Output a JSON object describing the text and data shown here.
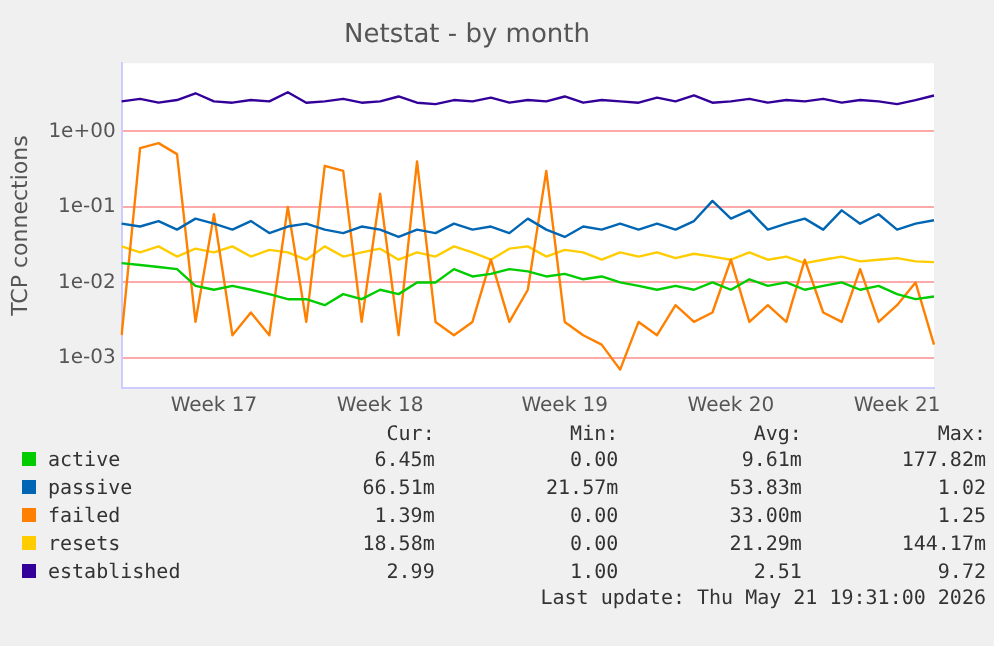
{
  "chart_data": {
    "type": "line",
    "title": "Netstat - by month",
    "ylabel": "TCP connections",
    "categories": [
      null,
      null,
      null,
      null,
      null,
      "Week 17",
      null,
      null,
      null,
      null,
      null,
      null,
      null,
      null,
      "Week 18",
      null,
      null,
      null,
      null,
      null,
      null,
      null,
      null,
      null,
      "Week 19",
      null,
      null,
      null,
      null,
      null,
      null,
      null,
      null,
      "Week 20",
      null,
      null,
      null,
      null,
      null,
      null,
      null,
      null,
      "Week 21",
      null,
      null
    ],
    "series": [
      {
        "name": "active",
        "color": "#00cc00",
        "values": [
          0.018,
          0.017,
          0.016,
          0.015,
          0.009,
          0.008,
          0.009,
          0.008,
          0.007,
          0.006,
          0.006,
          0.005,
          0.007,
          0.006,
          0.008,
          0.007,
          0.01,
          0.01,
          0.015,
          0.012,
          0.013,
          0.015,
          0.014,
          0.012,
          0.013,
          0.011,
          0.012,
          0.01,
          0.009,
          0.008,
          0.009,
          0.008,
          0.01,
          0.008,
          0.011,
          0.009,
          0.01,
          0.008,
          0.009,
          0.01,
          0.008,
          0.009,
          0.007,
          0.006,
          0.0065
        ]
      },
      {
        "name": "passive",
        "color": "#0066b3",
        "values": [
          0.06,
          0.055,
          0.065,
          0.05,
          0.07,
          0.06,
          0.05,
          0.065,
          0.045,
          0.055,
          0.06,
          0.05,
          0.045,
          0.055,
          0.05,
          0.04,
          0.05,
          0.045,
          0.06,
          0.05,
          0.055,
          0.045,
          0.07,
          0.05,
          0.04,
          0.055,
          0.05,
          0.06,
          0.05,
          0.06,
          0.05,
          0.065,
          0.12,
          0.07,
          0.09,
          0.05,
          0.06,
          0.07,
          0.05,
          0.09,
          0.06,
          0.08,
          0.05,
          0.06,
          0.0665
        ]
      },
      {
        "name": "failed",
        "color": "#ff8000",
        "values": [
          0.002,
          0.6,
          0.7,
          0.5,
          0.003,
          0.08,
          0.002,
          0.004,
          0.002,
          0.1,
          0.003,
          0.35,
          0.3,
          0.003,
          0.15,
          0.002,
          0.4,
          0.003,
          0.002,
          0.003,
          0.02,
          0.003,
          0.008,
          0.3,
          0.003,
          0.002,
          0.0015,
          0.0007,
          0.003,
          0.002,
          0.005,
          0.003,
          0.004,
          0.02,
          0.003,
          0.005,
          0.003,
          0.02,
          0.004,
          0.003,
          0.015,
          0.003,
          0.005,
          0.01,
          0.0015
        ]
      },
      {
        "name": "resets",
        "color": "#ffcc00",
        "values": [
          0.03,
          0.025,
          0.03,
          0.022,
          0.028,
          0.025,
          0.03,
          0.022,
          0.027,
          0.025,
          0.02,
          0.03,
          0.022,
          0.025,
          0.028,
          0.02,
          0.025,
          0.022,
          0.03,
          0.025,
          0.02,
          0.028,
          0.03,
          0.022,
          0.027,
          0.025,
          0.02,
          0.025,
          0.022,
          0.025,
          0.021,
          0.024,
          0.022,
          0.02,
          0.025,
          0.02,
          0.022,
          0.018,
          0.02,
          0.022,
          0.019,
          0.02,
          0.021,
          0.019,
          0.0186
        ]
      },
      {
        "name": "established",
        "color": "#330099",
        "values": [
          2.5,
          2.7,
          2.4,
          2.6,
          3.2,
          2.5,
          2.4,
          2.6,
          2.5,
          3.3,
          2.4,
          2.5,
          2.7,
          2.4,
          2.5,
          2.9,
          2.4,
          2.3,
          2.6,
          2.5,
          2.8,
          2.4,
          2.6,
          2.5,
          2.9,
          2.4,
          2.6,
          2.5,
          2.4,
          2.8,
          2.5,
          3.0,
          2.4,
          2.5,
          2.7,
          2.4,
          2.6,
          2.5,
          2.7,
          2.4,
          2.6,
          2.5,
          2.3,
          2.6,
          2.99
        ]
      }
    ],
    "ylim": [
      0.0004,
      8
    ],
    "yticks": [
      {
        "value": 0.001,
        "label": "1e-03"
      },
      {
        "value": 0.01,
        "label": "1e-02"
      },
      {
        "value": 0.1,
        "label": "1e-01"
      },
      {
        "value": 1,
        "label": "1e+00"
      }
    ],
    "log": "y",
    "grid": "y",
    "legend": "bottom",
    "marker": "none",
    "line_style": "solid",
    "annotations": [
      "Cur:",
      "Min:",
      "Avg:",
      "Max:",
      "6.45m",
      "0.00",
      "9.61m",
      "177.82m",
      "66.51m",
      "21.57m",
      "53.83m",
      "1.02",
      "1.39m",
      "0.00",
      "33.00m",
      "1.25",
      "18.58m",
      "0.00",
      "21.29m",
      "144.17m",
      "2.99",
      "1.00",
      "2.51",
      "9.72",
      "Last update: Thu May 21 19:31:00 2026"
    ]
  }
}
